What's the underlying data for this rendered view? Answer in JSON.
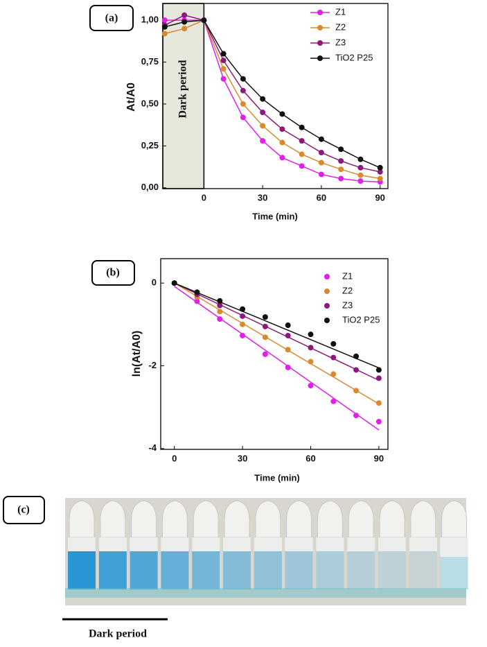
{
  "chart_data": [
    {
      "type": "line",
      "panel_label": "(a)",
      "x_label": "Time (min)",
      "y_label": "At/A0",
      "annotation": "Dark period",
      "shaded_region": [
        -21,
        0
      ],
      "x": [
        -20,
        -10,
        0,
        10,
        20,
        30,
        40,
        50,
        60,
        70,
        80,
        90
      ],
      "xlim": [
        -21,
        94
      ],
      "xticks": [
        0,
        30,
        60,
        90
      ],
      "ylim": [
        -0.005,
        1.1
      ],
      "yticks": [
        {
          "value": 0,
          "label": "0,00"
        },
        {
          "value": 0.25,
          "label": "0,25"
        },
        {
          "value": 0.5,
          "label": "0,50"
        },
        {
          "value": 0.75,
          "label": "0,75"
        },
        {
          "value": 1,
          "label": "1,00"
        }
      ],
      "series": [
        {
          "name": "Z1",
          "color": "#e020e8",
          "values": [
            1.0,
            1.0,
            1.0,
            0.65,
            0.42,
            0.28,
            0.18,
            0.13,
            0.08,
            0.055,
            0.04,
            0.035
          ]
        },
        {
          "name": "Z2",
          "color": "#d98a2e",
          "values": [
            0.92,
            0.95,
            1.0,
            0.71,
            0.5,
            0.37,
            0.27,
            0.2,
            0.15,
            0.11,
            0.075,
            0.055
          ]
        },
        {
          "name": "Z3",
          "color": "#8b1a7a",
          "values": [
            0.97,
            1.03,
            1.0,
            0.76,
            0.58,
            0.45,
            0.35,
            0.28,
            0.21,
            0.16,
            0.12,
            0.095
          ]
        },
        {
          "name": "TiO2 P25",
          "color": "#111111",
          "values": [
            0.96,
            0.99,
            1.0,
            0.8,
            0.65,
            0.53,
            0.44,
            0.36,
            0.29,
            0.23,
            0.17,
            0.12
          ]
        }
      ]
    },
    {
      "type": "scatter",
      "panel_label": "(b)",
      "x_label": "Time (min)",
      "y_label": "ln(At/A0)",
      "x": [
        0,
        10,
        20,
        30,
        40,
        50,
        60,
        70,
        80,
        90
      ],
      "xlim": [
        -6,
        94
      ],
      "xticks": [
        0,
        30,
        60,
        90
      ],
      "ylim": [
        -4.02,
        0.59
      ],
      "yticks": [
        -4,
        -2,
        0
      ],
      "fit_x": [
        0,
        90
      ],
      "series": [
        {
          "name": "Z1",
          "color": "#e020e8",
          "values": [
            0,
            -0.44,
            -0.87,
            -1.27,
            -1.72,
            -2.04,
            -2.48,
            -2.86,
            -3.2,
            -3.35
          ],
          "fit_values": [
            -0.08,
            -3.55
          ]
        },
        {
          "name": "Z2",
          "color": "#d98a2e",
          "values": [
            0,
            -0.34,
            -0.69,
            -1.0,
            -1.31,
            -1.61,
            -1.9,
            -2.2,
            -2.6,
            -2.9
          ],
          "fit_values": [
            0,
            -2.92
          ]
        },
        {
          "name": "Z3",
          "color": "#8b1a7a",
          "values": [
            0,
            -0.27,
            -0.54,
            -0.8,
            -1.05,
            -1.27,
            -1.56,
            -1.8,
            -2.1,
            -2.3
          ],
          "fit_values": [
            0,
            -2.35
          ]
        },
        {
          "name": "TiO2 P25",
          "color": "#111111",
          "values": [
            0,
            -0.22,
            -0.43,
            -0.63,
            -0.82,
            -1.02,
            -1.24,
            -1.47,
            -1.77,
            -2.1
          ],
          "fit_values": [
            0,
            -2.05
          ]
        }
      ]
    }
  ],
  "photo": {
    "panel_label": "(c)",
    "caption": "Dark period"
  }
}
